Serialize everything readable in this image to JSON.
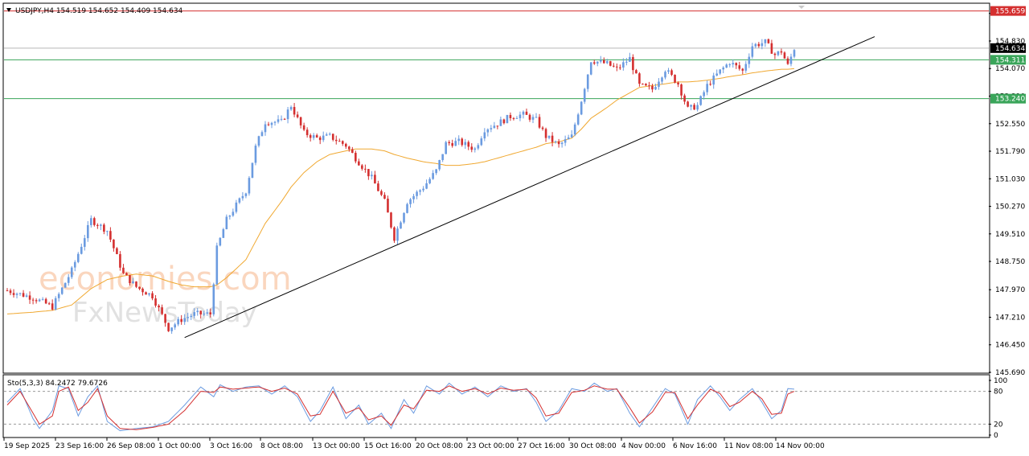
{
  "header": {
    "collapse_icon": "triangle-down-icon",
    "title": "USDJPY,H4  154.519 154.652 154.409 154.634"
  },
  "watermark": {
    "line1": "economies.com",
    "line2": "FxNewsToday"
  },
  "colors": {
    "bull": "#6b9be0",
    "bear": "#d42f2f",
    "ma": "#f0a830",
    "trendline": "#000000",
    "resistance_line": "#d42f2f",
    "support_line": "#3aa55a",
    "price_line": "#b8b8b8",
    "stoch_main": "#6b9be0",
    "stoch_signal": "#d42f2f"
  },
  "chart_data": [
    {
      "type": "candlestick",
      "symbol": "USDJPY",
      "timeframe": "H4",
      "ohlc_label": "154.519 154.652 154.409 154.634",
      "ylim": [
        145.69,
        155.85
      ],
      "y_ticks": [
        "155.590",
        "154.830",
        "154.070",
        "153.310",
        "152.550",
        "151.790",
        "151.030",
        "150.270",
        "149.510",
        "148.750",
        "147.970",
        "147.210",
        "146.450",
        "145.690"
      ],
      "x_ticks": [
        "19 Sep 2025",
        "23 Sep 16:00",
        "26 Sep 08:00",
        "1 Oct 00:00",
        "3 Oct 16:00",
        "8 Oct 08:00",
        "13 Oct 00:00",
        "15 Oct 16:00",
        "20 Oct 08:00",
        "23 Oct 00:00",
        "27 Oct 16:00",
        "30 Oct 08:00",
        "4 Nov 00:00",
        "6 Nov 16:00",
        "11 Nov 08:00",
        "14 Nov 00:00"
      ],
      "price_tags": [
        {
          "label": "155.659",
          "value": 155.659,
          "color": "#d42f2f"
        },
        {
          "label": "154.634",
          "value": 154.634,
          "color": "#000000"
        },
        {
          "label": "154.311",
          "value": 154.311,
          "color": "#3aa55a"
        },
        {
          "label": "153.240",
          "value": 153.24,
          "color": "#3aa55a"
        }
      ],
      "horizontal_lines": [
        {
          "value": 155.659,
          "color": "#d42f2f"
        },
        {
          "value": 154.634,
          "color": "#b8b8b8"
        },
        {
          "value": 154.311,
          "color": "#3aa55a"
        },
        {
          "value": 153.24,
          "color": "#3aa55a"
        }
      ],
      "close_anchors": [
        [
          0,
          147.95
        ],
        [
          8,
          147.75
        ],
        [
          14,
          147.5
        ],
        [
          20,
          148.5
        ],
        [
          26,
          149.9
        ],
        [
          31,
          149.6
        ],
        [
          36,
          148.4
        ],
        [
          40,
          148.05
        ],
        [
          45,
          147.8
        ],
        [
          50,
          146.9
        ],
        [
          54,
          147.15
        ],
        [
          58,
          147.3
        ],
        [
          63,
          147.3
        ],
        [
          65,
          149.1
        ],
        [
          68,
          149.9
        ],
        [
          74,
          150.7
        ],
        [
          77,
          151.9
        ],
        [
          80,
          152.6
        ],
        [
          85,
          152.6
        ],
        [
          88,
          153.05
        ],
        [
          92,
          152.3
        ],
        [
          96,
          152.15
        ],
        [
          100,
          152.2
        ],
        [
          105,
          151.95
        ],
        [
          108,
          151.6
        ],
        [
          113,
          151.05
        ],
        [
          117,
          150.4
        ],
        [
          120,
          149.4
        ],
        [
          124,
          150.4
        ],
        [
          129,
          150.8
        ],
        [
          133,
          151.25
        ],
        [
          136,
          152.0
        ],
        [
          140,
          152.05
        ],
        [
          145,
          151.85
        ],
        [
          148,
          152.4
        ],
        [
          152,
          152.55
        ],
        [
          156,
          152.75
        ],
        [
          160,
          152.8
        ],
        [
          164,
          152.65
        ],
        [
          167,
          152.2
        ],
        [
          171,
          151.95
        ],
        [
          175,
          152.2
        ],
        [
          178,
          153.2
        ],
        [
          181,
          154.3
        ],
        [
          186,
          154.2
        ],
        [
          189,
          154.05
        ],
        [
          193,
          154.35
        ],
        [
          196,
          153.6
        ],
        [
          200,
          153.5
        ],
        [
          204,
          154.05
        ],
        [
          208,
          153.65
        ],
        [
          211,
          152.95
        ],
        [
          214,
          153.05
        ],
        [
          217,
          153.6
        ],
        [
          221,
          154.0
        ],
        [
          224,
          154.25
        ],
        [
          228,
          154.0
        ],
        [
          231,
          154.7
        ],
        [
          235,
          154.8
        ],
        [
          238,
          154.45
        ],
        [
          240,
          154.55
        ],
        [
          242,
          154.15
        ],
        [
          244,
          154.63
        ]
      ],
      "ma_anchors": [
        [
          0,
          147.3
        ],
        [
          8,
          147.35
        ],
        [
          14,
          147.4
        ],
        [
          20,
          147.55
        ],
        [
          26,
          148.0
        ],
        [
          31,
          148.25
        ],
        [
          36,
          148.35
        ],
        [
          40,
          148.4
        ],
        [
          45,
          148.35
        ],
        [
          50,
          148.2
        ],
        [
          54,
          148.1
        ],
        [
          58,
          148.05
        ],
        [
          63,
          148.05
        ],
        [
          65,
          148.1
        ],
        [
          68,
          148.3
        ],
        [
          74,
          148.8
        ],
        [
          77,
          149.3
        ],
        [
          80,
          149.8
        ],
        [
          85,
          150.4
        ],
        [
          88,
          150.8
        ],
        [
          92,
          151.2
        ],
        [
          96,
          151.5
        ],
        [
          100,
          151.7
        ],
        [
          105,
          151.8
        ],
        [
          108,
          151.85
        ],
        [
          113,
          151.85
        ],
        [
          117,
          151.8
        ],
        [
          120,
          151.7
        ],
        [
          124,
          151.6
        ],
        [
          129,
          151.5
        ],
        [
          133,
          151.45
        ],
        [
          136,
          151.4
        ],
        [
          140,
          151.4
        ],
        [
          145,
          151.45
        ],
        [
          148,
          151.5
        ],
        [
          152,
          151.6
        ],
        [
          156,
          151.7
        ],
        [
          160,
          151.8
        ],
        [
          164,
          151.9
        ],
        [
          167,
          152.0
        ],
        [
          171,
          152.05
        ],
        [
          175,
          152.15
        ],
        [
          178,
          152.4
        ],
        [
          181,
          152.7
        ],
        [
          186,
          153.0
        ],
        [
          189,
          153.2
        ],
        [
          193,
          153.4
        ],
        [
          196,
          153.55
        ],
        [
          200,
          153.6
        ],
        [
          204,
          153.65
        ],
        [
          208,
          153.7
        ],
        [
          211,
          153.7
        ],
        [
          214,
          153.72
        ],
        [
          217,
          153.75
        ],
        [
          221,
          153.8
        ],
        [
          224,
          153.85
        ],
        [
          228,
          153.9
        ],
        [
          231,
          153.95
        ],
        [
          235,
          154.0
        ],
        [
          238,
          154.03
        ],
        [
          240,
          154.05
        ],
        [
          242,
          154.05
        ],
        [
          244,
          154.07
        ]
      ],
      "trendline": {
        "from": [
          "1 Oct 00:00",
          146.65
        ],
        "to_extended": 154.95
      },
      "candle_count": 245
    },
    {
      "type": "line",
      "indicator": "Sto(5,3,3)",
      "label": "Sto(5,3,3) 84.2472 79.6726",
      "main_value": 84.2472,
      "signal_value": 79.6726,
      "ylim": [
        0,
        100
      ],
      "y_ticks": [
        "100",
        "80",
        "20",
        "0"
      ],
      "levels": [
        80,
        20
      ],
      "main_anchors": [
        [
          0,
          60
        ],
        [
          4,
          85
        ],
        [
          8,
          30
        ],
        [
          10,
          12
        ],
        [
          14,
          45
        ],
        [
          16,
          90
        ],
        [
          19,
          85
        ],
        [
          22,
          35
        ],
        [
          25,
          70
        ],
        [
          28,
          90
        ],
        [
          31,
          25
        ],
        [
          35,
          8
        ],
        [
          40,
          12
        ],
        [
          45,
          15
        ],
        [
          50,
          25
        ],
        [
          55,
          55
        ],
        [
          60,
          88
        ],
        [
          64,
          70
        ],
        [
          66,
          92
        ],
        [
          70,
          80
        ],
        [
          74,
          88
        ],
        [
          78,
          90
        ],
        [
          82,
          75
        ],
        [
          86,
          90
        ],
        [
          90,
          70
        ],
        [
          94,
          25
        ],
        [
          97,
          45
        ],
        [
          101,
          88
        ],
        [
          105,
          30
        ],
        [
          109,
          55
        ],
        [
          112,
          20
        ],
        [
          116,
          40
        ],
        [
          119,
          12
        ],
        [
          123,
          65
        ],
        [
          126,
          40
        ],
        [
          130,
          90
        ],
        [
          134,
          75
        ],
        [
          137,
          95
        ],
        [
          141,
          75
        ],
        [
          145,
          88
        ],
        [
          149,
          70
        ],
        [
          153,
          90
        ],
        [
          157,
          80
        ],
        [
          161,
          85
        ],
        [
          164,
          60
        ],
        [
          167,
          25
        ],
        [
          171,
          45
        ],
        [
          175,
          85
        ],
        [
          179,
          80
        ],
        [
          182,
          95
        ],
        [
          186,
          80
        ],
        [
          189,
          85
        ],
        [
          193,
          40
        ],
        [
          196,
          15
        ],
        [
          200,
          50
        ],
        [
          204,
          85
        ],
        [
          207,
          75
        ],
        [
          211,
          20
        ],
        [
          214,
          65
        ],
        [
          218,
          90
        ],
        [
          221,
          70
        ],
        [
          224,
          45
        ],
        [
          227,
          65
        ],
        [
          231,
          85
        ],
        [
          234,
          60
        ],
        [
          237,
          30
        ],
        [
          240,
          45
        ],
        [
          242,
          85
        ],
        [
          244,
          84
        ]
      ],
      "signal_anchors": [
        [
          0,
          55
        ],
        [
          4,
          80
        ],
        [
          8,
          40
        ],
        [
          10,
          20
        ],
        [
          14,
          35
        ],
        [
          16,
          80
        ],
        [
          19,
          88
        ],
        [
          22,
          45
        ],
        [
          25,
          60
        ],
        [
          28,
          85
        ],
        [
          31,
          35
        ],
        [
          35,
          12
        ],
        [
          40,
          10
        ],
        [
          45,
          14
        ],
        [
          50,
          20
        ],
        [
          55,
          45
        ],
        [
          60,
          80
        ],
        [
          64,
          78
        ],
        [
          66,
          88
        ],
        [
          70,
          84
        ],
        [
          74,
          86
        ],
        [
          78,
          88
        ],
        [
          82,
          80
        ],
        [
          86,
          86
        ],
        [
          90,
          75
        ],
        [
          94,
          35
        ],
        [
          97,
          38
        ],
        [
          101,
          80
        ],
        [
          105,
          40
        ],
        [
          109,
          50
        ],
        [
          112,
          28
        ],
        [
          116,
          35
        ],
        [
          119,
          18
        ],
        [
          123,
          55
        ],
        [
          126,
          48
        ],
        [
          130,
          82
        ],
        [
          134,
          80
        ],
        [
          137,
          90
        ],
        [
          141,
          80
        ],
        [
          145,
          85
        ],
        [
          149,
          75
        ],
        [
          153,
          86
        ],
        [
          157,
          82
        ],
        [
          161,
          84
        ],
        [
          164,
          68
        ],
        [
          167,
          35
        ],
        [
          171,
          40
        ],
        [
          175,
          78
        ],
        [
          179,
          82
        ],
        [
          182,
          90
        ],
        [
          186,
          84
        ],
        [
          189,
          84
        ],
        [
          193,
          50
        ],
        [
          196,
          22
        ],
        [
          200,
          42
        ],
        [
          204,
          78
        ],
        [
          207,
          78
        ],
        [
          211,
          30
        ],
        [
          214,
          55
        ],
        [
          218,
          84
        ],
        [
          221,
          76
        ],
        [
          224,
          52
        ],
        [
          227,
          60
        ],
        [
          231,
          80
        ],
        [
          234,
          66
        ],
        [
          237,
          38
        ],
        [
          240,
          40
        ],
        [
          242,
          75
        ],
        [
          244,
          80
        ]
      ]
    }
  ]
}
